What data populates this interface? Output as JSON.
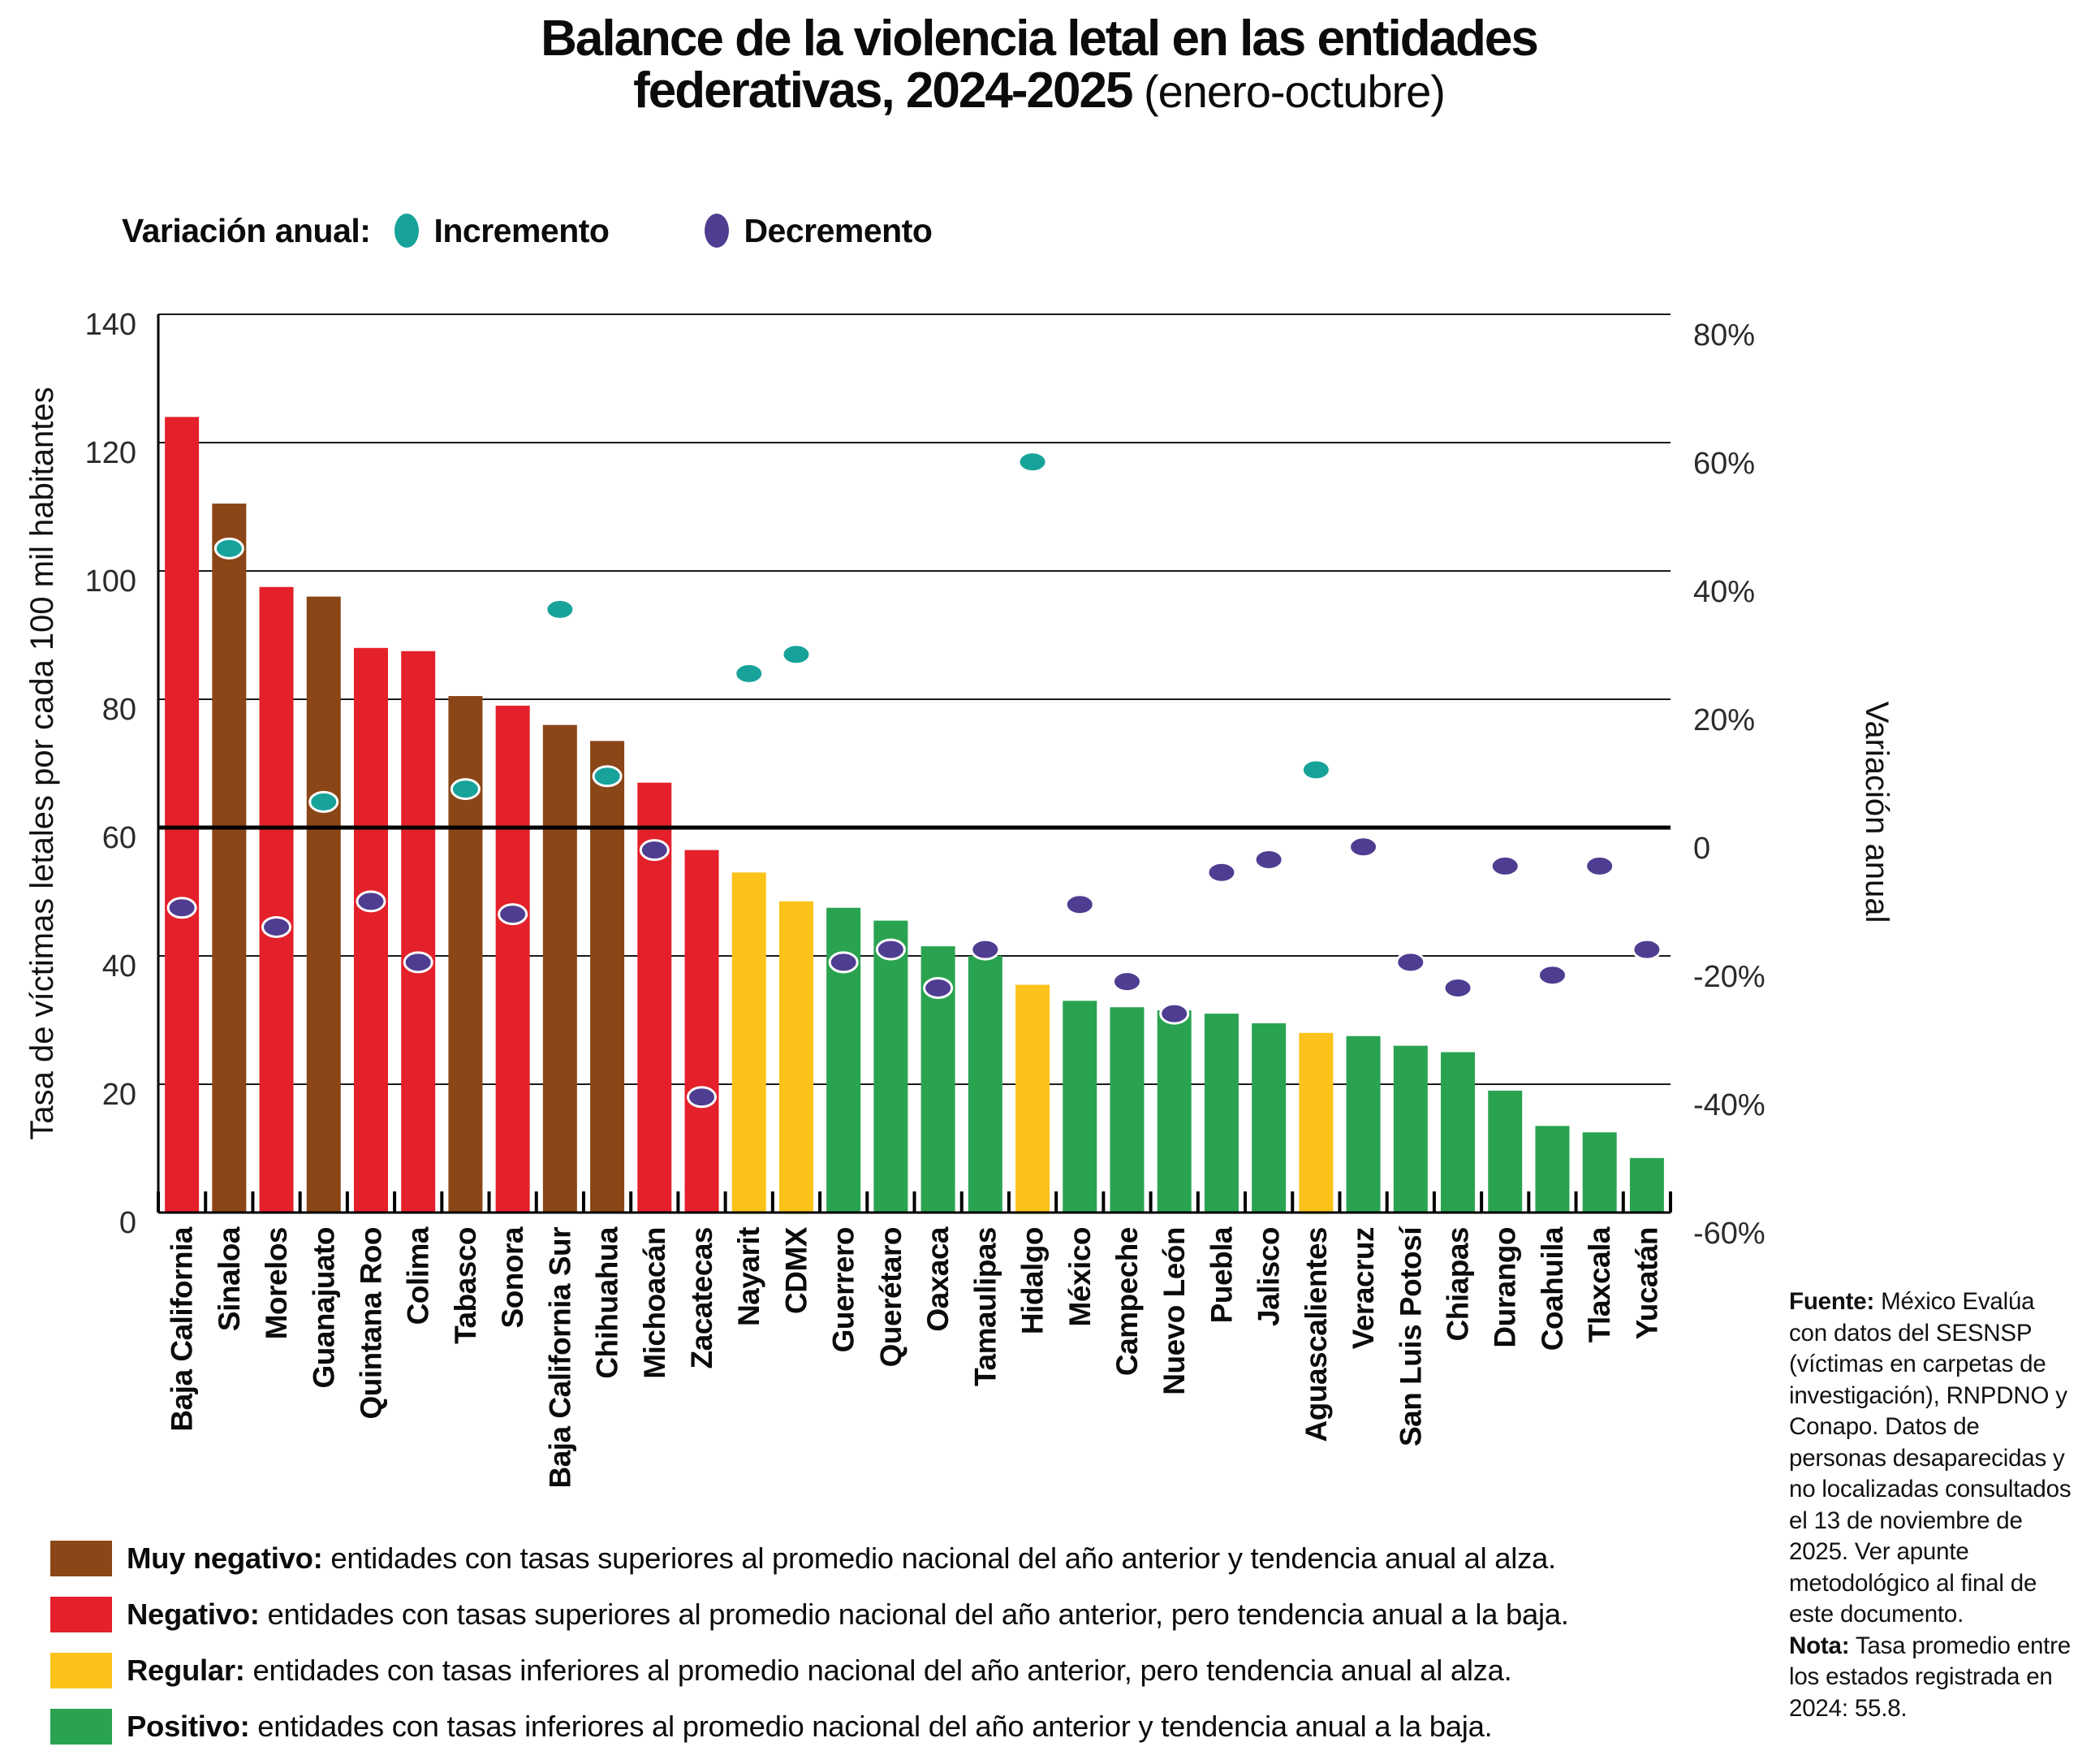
{
  "title": {
    "line1": "Balance de la violencia letal en las entidades",
    "line2_bold": "federativas, 2024-2025",
    "line2_light": " (enero-octubre)"
  },
  "variation_legend": {
    "label": "Variación anual:",
    "increment_label": "Incremento",
    "decrement_label": "Decremento"
  },
  "chart_data": {
    "type": "bar",
    "title": "Balance de la violencia letal en las entidades federativas, 2024-2025 (enero-octubre)",
    "ylabel_left": "Tasa de víctimas letales por cada 100 mil habitantes",
    "ylabel_right": "Variación anual",
    "ylim_left": [
      0,
      140
    ],
    "ylim_right_pct": [
      -60,
      80
    ],
    "left_ticks": [
      0,
      20,
      40,
      60,
      80,
      100,
      120,
      140
    ],
    "right_tick_labels": [
      "-60%",
      "-40%",
      "-20%",
      "0",
      "20%",
      "40%",
      "60%",
      "80%"
    ],
    "zero_variation_line_left_value": 60,
    "grid": true,
    "legend_position": "top-left",
    "categories": [
      "Baja California",
      "Sinaloa",
      "Morelos",
      "Guanajuato",
      "Quintana Roo",
      "Colima",
      "Tabasco",
      "Sonora",
      "Baja California Sur",
      "Chihuahua",
      "Michoacán",
      "Zacatecas",
      "Nayarit",
      "CDMX",
      "Guerrero",
      "Querétaro",
      "Oaxaca",
      "Tamaulipas",
      "Hidalgo",
      "México",
      "Campeche",
      "Nuevo León",
      "Puebla",
      "Jalisco",
      "Aguascalientes",
      "Veracruz",
      "San Luis Potosí",
      "Chiapas",
      "Durango",
      "Coahuila",
      "Tlaxcala",
      "Yucatán"
    ],
    "series": [
      {
        "name": "Tasa de víctimas letales por cada 100 mil habitantes",
        "values": [
          124,
          110.5,
          97.5,
          96,
          88,
          87.5,
          80.5,
          79,
          76,
          73.5,
          67,
          56.5,
          53,
          48.5,
          47.5,
          45.5,
          41.5,
          40,
          35.5,
          33,
          32,
          31.5,
          31,
          29.5,
          28,
          27.5,
          26,
          25,
          19,
          13.5,
          12.5,
          8.5
        ]
      },
      {
        "name": "Variación anual (%)",
        "values": [
          -12.5,
          43.5,
          -15.5,
          4,
          -11.5,
          -21,
          6,
          -13.5,
          34,
          8,
          -3.5,
          -42,
          24,
          27,
          -21,
          -19,
          -25,
          -19,
          57,
          -12,
          -24,
          -29,
          -7,
          -5,
          9,
          -3,
          -21,
          -25,
          -6,
          -23,
          -6,
          -19
        ]
      }
    ],
    "bar_category": [
      "negativo",
      "muy_negativo",
      "negativo",
      "muy_negativo",
      "negativo",
      "negativo",
      "muy_negativo",
      "negativo",
      "muy_negativo",
      "muy_negativo",
      "negativo",
      "negativo",
      "regular",
      "regular",
      "positivo",
      "positivo",
      "positivo",
      "positivo",
      "regular",
      "positivo",
      "positivo",
      "positivo",
      "positivo",
      "positivo",
      "regular",
      "positivo",
      "positivo",
      "positivo",
      "positivo",
      "positivo",
      "positivo",
      "positivo"
    ],
    "colors": {
      "muy_negativo": "#8a4617",
      "negativo": "#e4202a",
      "regular": "#fbc21a",
      "positivo": "#2aa351",
      "incremento": "#17a39a",
      "decremento": "#4e3d90"
    }
  },
  "category_legend": [
    {
      "key": "muy_negativo",
      "label": "Muy negativo:",
      "desc": " entidades con tasas superiores al promedio nacional del año anterior y tendencia anual al alza."
    },
    {
      "key": "negativo",
      "label": "Negativo:",
      "desc": " entidades con tasas superiores al promedio nacional del año anterior, pero tendencia anual a la baja."
    },
    {
      "key": "regular",
      "label": "Regular:",
      "desc": " entidades con tasas inferiores al promedio nacional del año anterior, pero tendencia anual al alza."
    },
    {
      "key": "positivo",
      "label": "Positivo:",
      "desc": " entidades con tasas inferiores al promedio nacional del año anterior y tendencia anual a la baja."
    }
  ],
  "footnote": {
    "fuente_label": "Fuente:",
    "fuente_text": " México Evalúa con datos del SESNSP (víctimas en carpetas de investigación), RNPDNO y Conapo. Datos de personas desaparecidas y no localizadas consultados el 13 de noviembre de 2025. Ver apunte metodológico al final de este documento.",
    "nota_label": "Nota:",
    "nota_text": " Tasa promedio entre los estados registrada en 2024: 55.8."
  }
}
